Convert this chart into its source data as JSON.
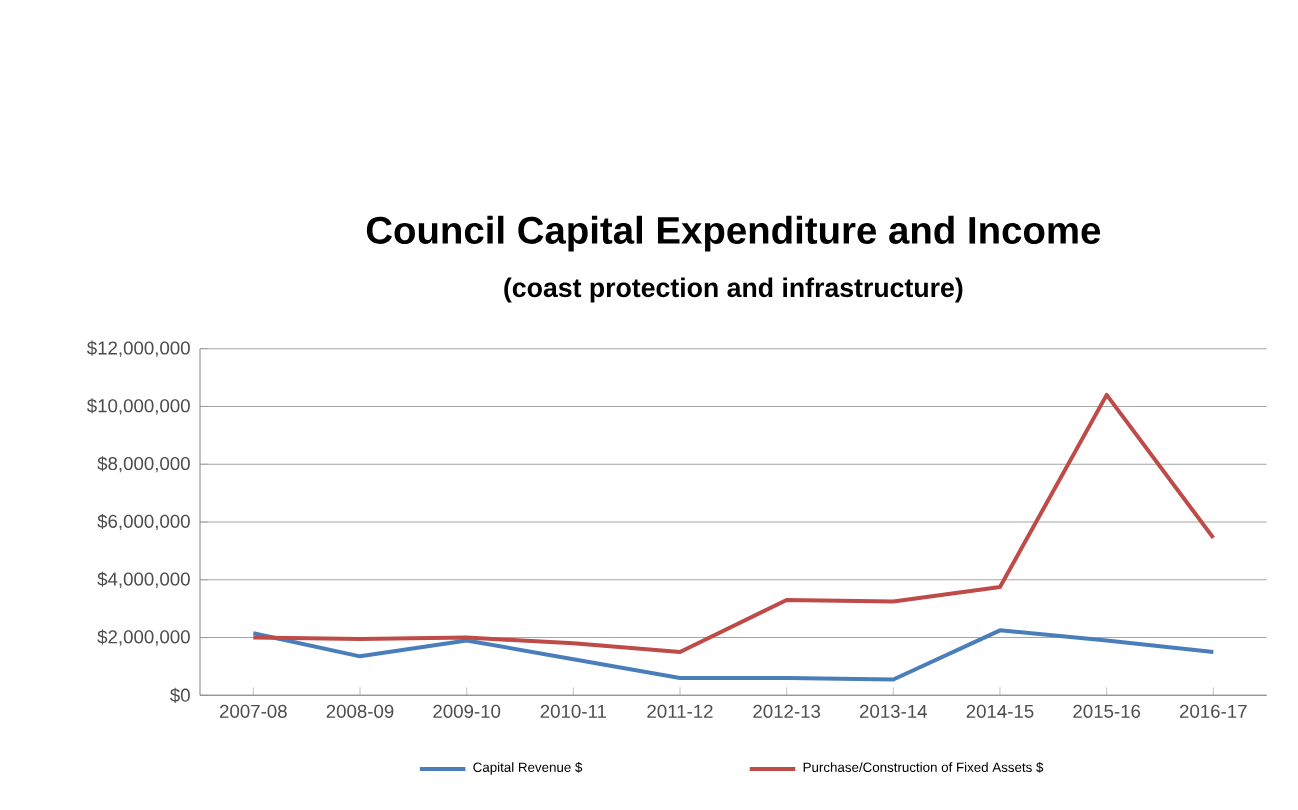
{
  "chart_data": {
    "type": "line",
    "title": "Council Capital Expenditure and Income",
    "subtitle": "(coast protection and infrastructure)",
    "categories": [
      "2007-08",
      "2008-09",
      "2009-10",
      "2010-11",
      "2011-12",
      "2012-13",
      "2013-14",
      "2014-15",
      "2015-16",
      "2016-17"
    ],
    "series": [
      {
        "name": "Capital Revenue $",
        "color": "#4a7ebb",
        "values": [
          2150000,
          1350000,
          1900000,
          1250000,
          600000,
          600000,
          550000,
          2250000,
          1900000,
          1500000
        ]
      },
      {
        "name": "Purchase/Construction of Fixed Assets $",
        "color": "#be4b48",
        "values": [
          2000000,
          1950000,
          2000000,
          1800000,
          1500000,
          3300000,
          3250000,
          3750000,
          10400000,
          5450000
        ]
      }
    ],
    "ylim": [
      0,
      12000000
    ],
    "yticks": [
      {
        "value": 0,
        "label": "$0"
      },
      {
        "value": 2000000,
        "label": "$2,000,000"
      },
      {
        "value": 4000000,
        "label": "$4,000,000"
      },
      {
        "value": 6000000,
        "label": "$6,000,000"
      },
      {
        "value": 8000000,
        "label": "$8,000,000"
      },
      {
        "value": 10000000,
        "label": "$10,000,000"
      },
      {
        "value": 12000000,
        "label": "$12,000,000"
      }
    ],
    "grid": "y",
    "legend": "bottom",
    "marker": "none",
    "line_style": "solid"
  }
}
